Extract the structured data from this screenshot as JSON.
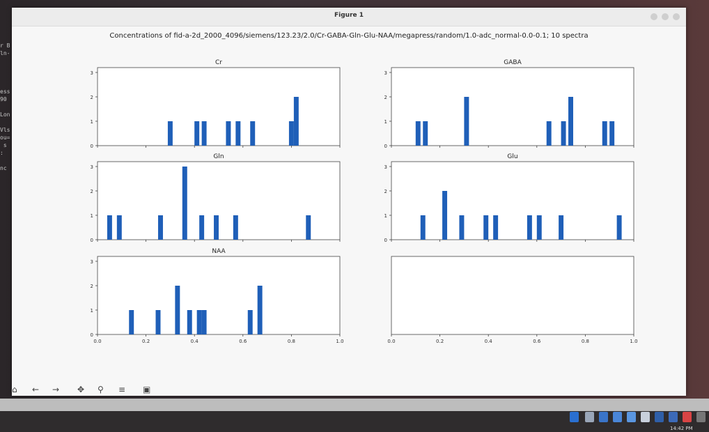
{
  "window": {
    "title": "Figure 1"
  },
  "terminal_lines": [
    "r B",
    "ln-",
    "",
    "",
    "",
    "",
    "ess",
    "90",
    "",
    "Lon",
    "",
    "Vls",
    "ou=",
    " s",
    ":",
    "",
    "nc"
  ],
  "chart_data": {
    "title": "Concentrations of fid-a-2d_2000_4096/siemens/123.23/2.0/Cr-GABA-Gln-Glu-NAA/megapress/random/1.0-adc_normal-0.0-0.1; 10 spectra",
    "type": "bar",
    "xlim": [
      0,
      1
    ],
    "ylim": [
      0,
      3.2
    ],
    "xticks": [
      "0.0",
      "0.2",
      "0.4",
      "0.6",
      "0.8",
      "1.0"
    ],
    "yticks": [
      "0",
      "1",
      "2",
      "3"
    ],
    "colors": {
      "bar": "#1f5fb8"
    },
    "subplots": [
      {
        "title": "Cr",
        "bars": [
          [
            0.29,
            1
          ],
          [
            0.4,
            1
          ],
          [
            0.43,
            1
          ],
          [
            0.53,
            1
          ],
          [
            0.57,
            1
          ],
          [
            0.63,
            1
          ],
          [
            0.79,
            1
          ],
          [
            0.81,
            2
          ]
        ]
      },
      {
        "title": "GABA",
        "bars": [
          [
            0.1,
            1
          ],
          [
            0.13,
            1
          ],
          [
            0.3,
            2
          ],
          [
            0.64,
            1
          ],
          [
            0.7,
            1
          ],
          [
            0.73,
            2
          ],
          [
            0.87,
            1
          ],
          [
            0.9,
            1
          ]
        ]
      },
      {
        "title": "Gln",
        "bars": [
          [
            0.04,
            1
          ],
          [
            0.08,
            1
          ],
          [
            0.25,
            1
          ],
          [
            0.35,
            3
          ],
          [
            0.42,
            1
          ],
          [
            0.48,
            1
          ],
          [
            0.56,
            1
          ],
          [
            0.86,
            1
          ]
        ]
      },
      {
        "title": "Glu",
        "bars": [
          [
            0.12,
            1
          ],
          [
            0.21,
            2
          ],
          [
            0.28,
            1
          ],
          [
            0.38,
            1
          ],
          [
            0.42,
            1
          ],
          [
            0.56,
            1
          ],
          [
            0.6,
            1
          ],
          [
            0.69,
            1
          ],
          [
            0.93,
            1
          ]
        ]
      },
      {
        "title": "NAA",
        "bars": [
          [
            0.13,
            1
          ],
          [
            0.24,
            1
          ],
          [
            0.32,
            2
          ],
          [
            0.37,
            1
          ],
          [
            0.41,
            1
          ],
          [
            0.43,
            1
          ],
          [
            0.62,
            1
          ],
          [
            0.66,
            2
          ]
        ]
      },
      {
        "title": "",
        "bars": []
      }
    ]
  },
  "toolbar": {
    "icons": [
      "home-icon",
      "back-arrow-icon",
      "forward-arrow-icon",
      "pan-icon",
      "zoom-icon",
      "configure-subplots-icon",
      "save-icon"
    ]
  },
  "taskbar": {
    "clock": "14:42 PM"
  }
}
